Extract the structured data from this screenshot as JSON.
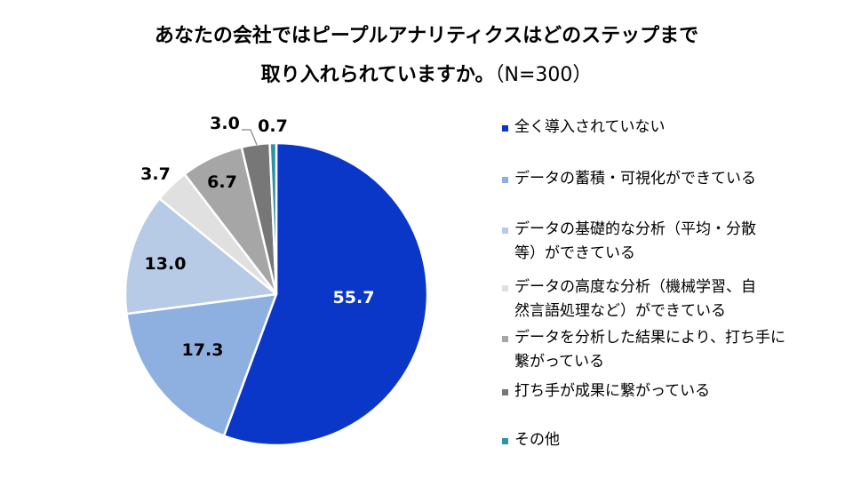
{
  "title": {
    "line1": "あなたの会社ではピープルアナリティクスはどのステップまで",
    "line2": "取り入れられていますか。",
    "n": "（N=300）"
  },
  "chart_data": {
    "type": "pie",
    "categories": [
      "全く導入されていない",
      "データの蓄積・可視化ができている",
      "データの基礎的な分析（平均・分散等）ができている",
      "データの高度な分析（機械学習、自然言語処理など）ができている",
      "データを分析した結果により、打ち手に繋がっている",
      "打ち手が成果に繋がっている",
      "その他"
    ],
    "legend_lines": [
      [
        "全く導入されていない"
      ],
      [
        "データの蓄積・可視化ができている"
      ],
      [
        "データの基礎的な分析（平均・分散",
        "等）ができている"
      ],
      [
        "データの高度な分析（機械学習、自",
        "然言語処理など）ができている"
      ],
      [
        "データを分析した結果により、打ち手に",
        "繋がっている"
      ],
      [
        "打ち手が成果に繋がっている"
      ],
      [
        "その他"
      ]
    ],
    "values": [
      55.7,
      17.3,
      13.0,
      3.7,
      6.7,
      3.0,
      0.7
    ],
    "data_labels": [
      "55.7",
      "17.3",
      "13.0",
      "3.7",
      "6.7",
      "3.0",
      "0.7"
    ],
    "colors": [
      "#0a37c8",
      "#8eb0e0",
      "#b8cbe6",
      "#e0e0e0",
      "#a6a6a6",
      "#777777",
      "#2e93a6"
    ],
    "label_colors": [
      "#ffffff",
      "#000000",
      "#000000",
      "#000000",
      "#000000",
      "#000000",
      "#000000"
    ],
    "start_angle": "12 o'clock",
    "direction": "clockwise",
    "legend_position": "right"
  }
}
